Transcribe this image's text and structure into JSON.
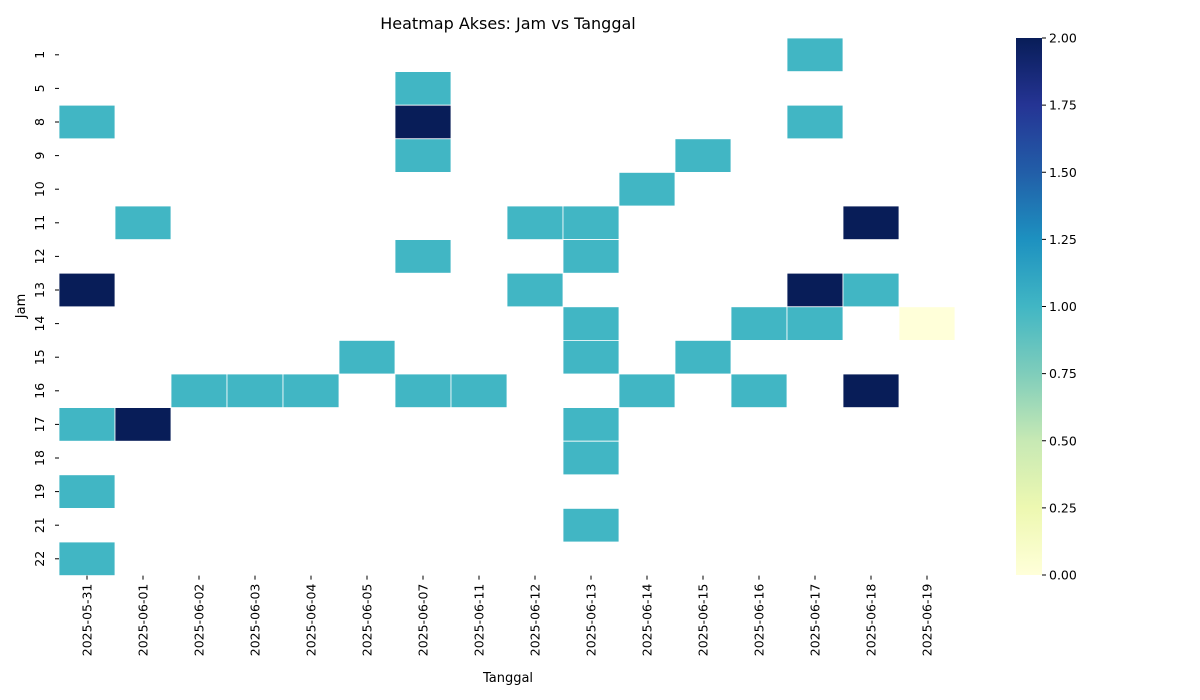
{
  "chart_data": {
    "type": "heatmap",
    "title": "Heatmap Akses: Jam vs Tanggal",
    "xlabel": "Tanggal",
    "ylabel": "Jam",
    "x_categories": [
      "2025-05-31",
      "2025-06-01",
      "2025-06-02",
      "2025-06-03",
      "2025-06-04",
      "2025-06-05",
      "2025-06-07",
      "2025-06-11",
      "2025-06-12",
      "2025-06-13",
      "2025-06-14",
      "2025-06-15",
      "2025-06-16",
      "2025-06-17",
      "2025-06-18",
      "2025-06-19"
    ],
    "y_categories": [
      "1",
      "5",
      "8",
      "9",
      "10",
      "11",
      "12",
      "13",
      "14",
      "15",
      "16",
      "17",
      "18",
      "19",
      "21",
      "22"
    ],
    "values": [
      [
        null,
        null,
        null,
        null,
        null,
        null,
        null,
        null,
        null,
        null,
        null,
        null,
        null,
        1,
        null,
        null
      ],
      [
        null,
        null,
        null,
        null,
        null,
        null,
        1,
        null,
        null,
        null,
        null,
        null,
        null,
        null,
        null,
        null
      ],
      [
        1,
        null,
        null,
        null,
        null,
        null,
        2,
        null,
        null,
        null,
        null,
        null,
        null,
        1,
        null,
        null
      ],
      [
        null,
        null,
        null,
        null,
        null,
        null,
        1,
        null,
        null,
        null,
        null,
        1,
        null,
        null,
        null,
        null
      ],
      [
        null,
        null,
        null,
        null,
        null,
        null,
        null,
        null,
        null,
        null,
        1,
        null,
        null,
        null,
        null,
        null
      ],
      [
        null,
        1,
        null,
        null,
        null,
        null,
        null,
        null,
        1,
        1,
        null,
        null,
        null,
        null,
        2,
        null
      ],
      [
        null,
        null,
        null,
        null,
        null,
        null,
        1,
        null,
        null,
        1,
        null,
        null,
        null,
        null,
        null,
        null
      ],
      [
        2,
        null,
        null,
        null,
        null,
        null,
        null,
        null,
        1,
        null,
        null,
        null,
        null,
        2,
        1,
        null
      ],
      [
        null,
        null,
        null,
        null,
        null,
        null,
        null,
        null,
        null,
        1,
        null,
        null,
        1,
        1,
        null,
        0
      ],
      [
        null,
        null,
        null,
        null,
        null,
        1,
        null,
        null,
        null,
        1,
        null,
        1,
        null,
        null,
        null,
        null
      ],
      [
        null,
        null,
        1,
        1,
        1,
        null,
        1,
        1,
        null,
        null,
        1,
        null,
        1,
        null,
        2,
        null
      ],
      [
        1,
        2,
        null,
        null,
        null,
        null,
        null,
        null,
        null,
        1,
        null,
        null,
        null,
        null,
        null,
        null
      ],
      [
        null,
        null,
        null,
        null,
        null,
        null,
        null,
        null,
        null,
        1,
        null,
        null,
        null,
        null,
        null,
        null
      ],
      [
        1,
        null,
        null,
        null,
        null,
        null,
        null,
        null,
        null,
        null,
        null,
        null,
        null,
        null,
        null,
        null
      ],
      [
        null,
        null,
        null,
        null,
        null,
        null,
        null,
        null,
        null,
        1,
        null,
        null,
        null,
        null,
        null,
        null
      ],
      [
        1,
        null,
        null,
        null,
        null,
        null,
        null,
        null,
        null,
        null,
        null,
        null,
        null,
        null,
        null,
        null
      ]
    ],
    "colorbar": {
      "range": [
        0,
        2
      ],
      "ticks": [
        "0.00",
        "0.25",
        "0.50",
        "0.75",
        "1.00",
        "1.25",
        "1.50",
        "1.75",
        "2.00"
      ],
      "colormap": "YlGnBu",
      "stops": [
        "#ffffd9",
        "#edf8b1",
        "#c7e9b4",
        "#7fcdbb",
        "#41b6c4",
        "#1d91c0",
        "#225ea8",
        "#253494",
        "#081d58"
      ]
    }
  }
}
